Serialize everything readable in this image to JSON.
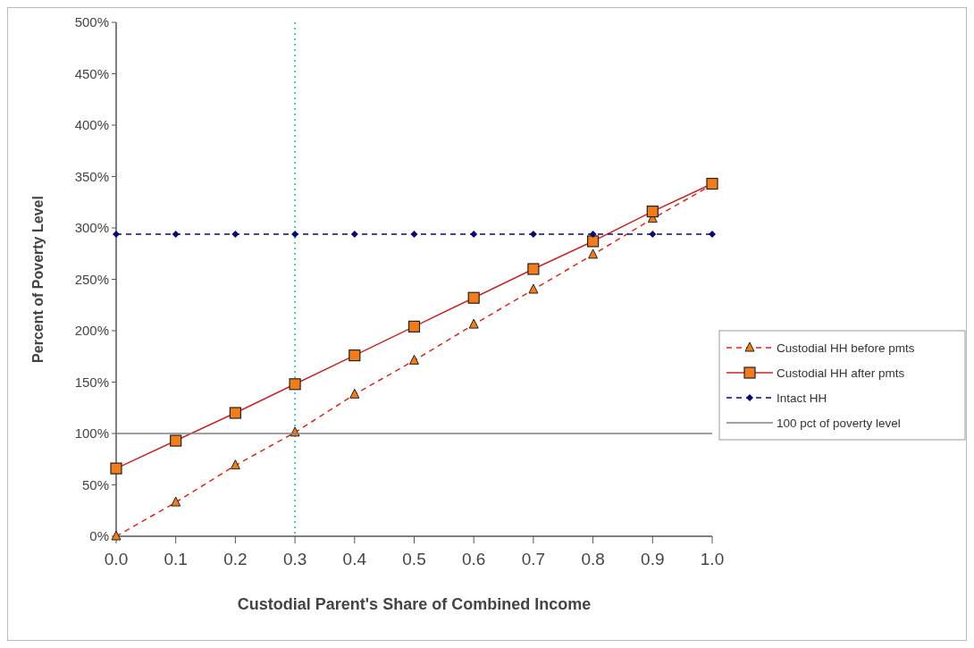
{
  "chart_data": {
    "type": "line",
    "xlabel": "Custodial Parent's Share of Combined Income",
    "ylabel": "Percent of Poverty Level",
    "x": [
      0,
      0.1,
      0.2,
      0.3,
      0.4,
      0.5,
      0.6,
      0.7,
      0.8,
      0.9,
      1.0
    ],
    "xlim": [
      0,
      1
    ],
    "xticks": [
      {
        "value": 0,
        "label": "0.0"
      },
      0.1,
      0.2,
      0.3,
      0.4,
      0.5,
      0.6,
      0.7,
      0.8,
      0.9,
      {
        "value": 1,
        "label": "1.0"
      }
    ],
    "ylim": [
      0,
      500
    ],
    "yticks": [
      {
        "value": 0,
        "label": "0%"
      },
      {
        "value": 50,
        "label": "50%"
      },
      {
        "value": 100,
        "label": "100%"
      },
      {
        "value": 150,
        "label": "150%"
      },
      {
        "value": 200,
        "label": "200%"
      },
      {
        "value": 250,
        "label": "250%"
      },
      {
        "value": 300,
        "label": "300%"
      },
      {
        "value": 350,
        "label": "350%"
      },
      {
        "value": 400,
        "label": "400%"
      },
      {
        "value": 450,
        "label": "450%"
      },
      {
        "value": 500,
        "label": "500%"
      }
    ],
    "grid": false,
    "legend": "right",
    "series": [
      {
        "name": "Custodial HH before pmts",
        "color": "#d42a1e",
        "marker": "triangle",
        "line_style": "dashed",
        "values": [
          0,
          33,
          69,
          101,
          138,
          171,
          206,
          240,
          274,
          309,
          342
        ]
      },
      {
        "name": "Custodial HH after pmts",
        "color": "#c0282a",
        "marker": "square",
        "line_style": "solid",
        "values": [
          66,
          93,
          120,
          148,
          176,
          204,
          232,
          260,
          287,
          316,
          343
        ]
      },
      {
        "name": "Intact HH",
        "color": "#0a0a6e",
        "marker": "diamond",
        "line_style": "dashed",
        "values": [
          294,
          294,
          294,
          294,
          294,
          294,
          294,
          294,
          294,
          294,
          294
        ]
      },
      {
        "name": "100 pct of poverty level",
        "color": "#808080",
        "marker": "none",
        "line_style": "solid",
        "values": [
          100,
          100,
          100,
          100,
          100,
          100,
          100,
          100,
          100,
          100,
          100
        ]
      }
    ],
    "ref_lines": [
      {
        "axis": "x",
        "value": 0.3,
        "color": "#2bb5a8",
        "line_style": "dotted"
      }
    ]
  }
}
